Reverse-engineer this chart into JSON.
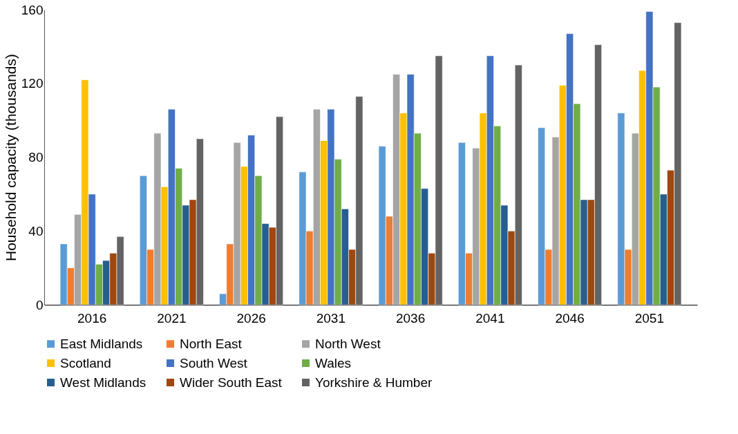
{
  "chart_data": {
    "type": "bar",
    "ylabel": "Household capacity (thousands)",
    "categories": [
      "2016",
      "2021",
      "2026",
      "2031",
      "2036",
      "2041",
      "2046",
      "2051"
    ],
    "ylim": [
      0,
      160
    ],
    "yticks": [
      0,
      40,
      80,
      120,
      160
    ],
    "grid": false,
    "legend": "bottom",
    "series": [
      {
        "name": "East Midlands",
        "color": "#5b9bd5",
        "values": [
          33,
          70,
          6,
          72,
          86,
          88,
          96,
          104
        ]
      },
      {
        "name": "North East",
        "color": "#ed7d31",
        "values": [
          20,
          30,
          33,
          40,
          48,
          28,
          30,
          30
        ]
      },
      {
        "name": "North West",
        "color": "#a5a5a5",
        "values": [
          49,
          93,
          88,
          106,
          125,
          85,
          91,
          93
        ]
      },
      {
        "name": "Scotland",
        "color": "#ffc000",
        "values": [
          122,
          64,
          75,
          89,
          104,
          104,
          119,
          127
        ]
      },
      {
        "name": "South West",
        "color": "#4472c4",
        "values": [
          60,
          106,
          92,
          106,
          125,
          135,
          147,
          159
        ]
      },
      {
        "name": "Wales",
        "color": "#70ad47",
        "values": [
          22,
          74,
          70,
          79,
          93,
          97,
          109,
          118
        ]
      },
      {
        "name": "West Midlands",
        "color": "#255e91",
        "values": [
          24,
          54,
          44,
          52,
          63,
          54,
          57,
          60
        ]
      },
      {
        "name": "Wider South East",
        "color": "#9e480e",
        "values": [
          28,
          57,
          42,
          30,
          28,
          40,
          57,
          73
        ]
      },
      {
        "name": "Yorkshire & Humber",
        "color": "#636363",
        "values": [
          37,
          90,
          102,
          113,
          135,
          130,
          141,
          153
        ]
      }
    ]
  }
}
